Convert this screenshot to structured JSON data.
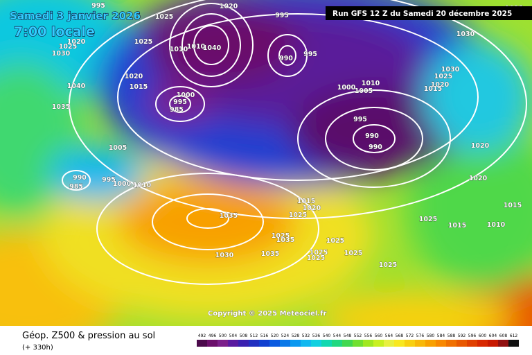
{
  "header": {
    "date": "Samedi 3 janvier 2026",
    "time": "7:00 locale",
    "run": "Run GFS 12 Z du Samedi 20 décembre 2025"
  },
  "isobar_labels": [
    "995",
    "1025",
    "1020",
    "995",
    "1025",
    "1030",
    "1025",
    "1020",
    "1025",
    "1030",
    "1040",
    "1010",
    "1010",
    "990",
    "995",
    "1030",
    "1025",
    "1020",
    "1015",
    "1020",
    "1015",
    "1040",
    "1000",
    "1005",
    "1010",
    "1000",
    "995",
    "985",
    "1035",
    "995",
    "990",
    "990",
    "1005",
    "1020",
    "990",
    "985",
    "995",
    "1000",
    "1010",
    "1020",
    "1015",
    "1020",
    "1025",
    "1035",
    "1015",
    "1025",
    "1015",
    "1010",
    "1025",
    "1035",
    "1025",
    "1025",
    "1030",
    "1035",
    "1025",
    "1025",
    "1025"
  ],
  "copyright": "Copyright © 2025 Meteociel.fr",
  "footer": {
    "title": "Géop. Z500 & pression au sol",
    "lead": "(+ 330h)"
  },
  "legend": {
    "levels": [
      492,
      496,
      500,
      504,
      508,
      512,
      516,
      520,
      524,
      528,
      532,
      536,
      540,
      544,
      548,
      552,
      556,
      560,
      564,
      568,
      572,
      576,
      580,
      584,
      588,
      592,
      596,
      600,
      604,
      608,
      612
    ],
    "colors": [
      "#4b0a4b",
      "#6b0f6b",
      "#7b1f8a",
      "#5a1aa0",
      "#3a20b0",
      "#2030c0",
      "#1040d0",
      "#0a5ae0",
      "#0a78e8",
      "#0a98f0",
      "#10b8f0",
      "#10d0e0",
      "#10d8b0",
      "#20d880",
      "#40d850",
      "#70e030",
      "#a0e820",
      "#c8f020",
      "#e8f040",
      "#f8e820",
      "#f8d010",
      "#f8b808",
      "#f8a000",
      "#f88800",
      "#f07000",
      "#e85800",
      "#e04000",
      "#d82800",
      "#c81800",
      "#901010",
      "#101010"
    ]
  }
}
